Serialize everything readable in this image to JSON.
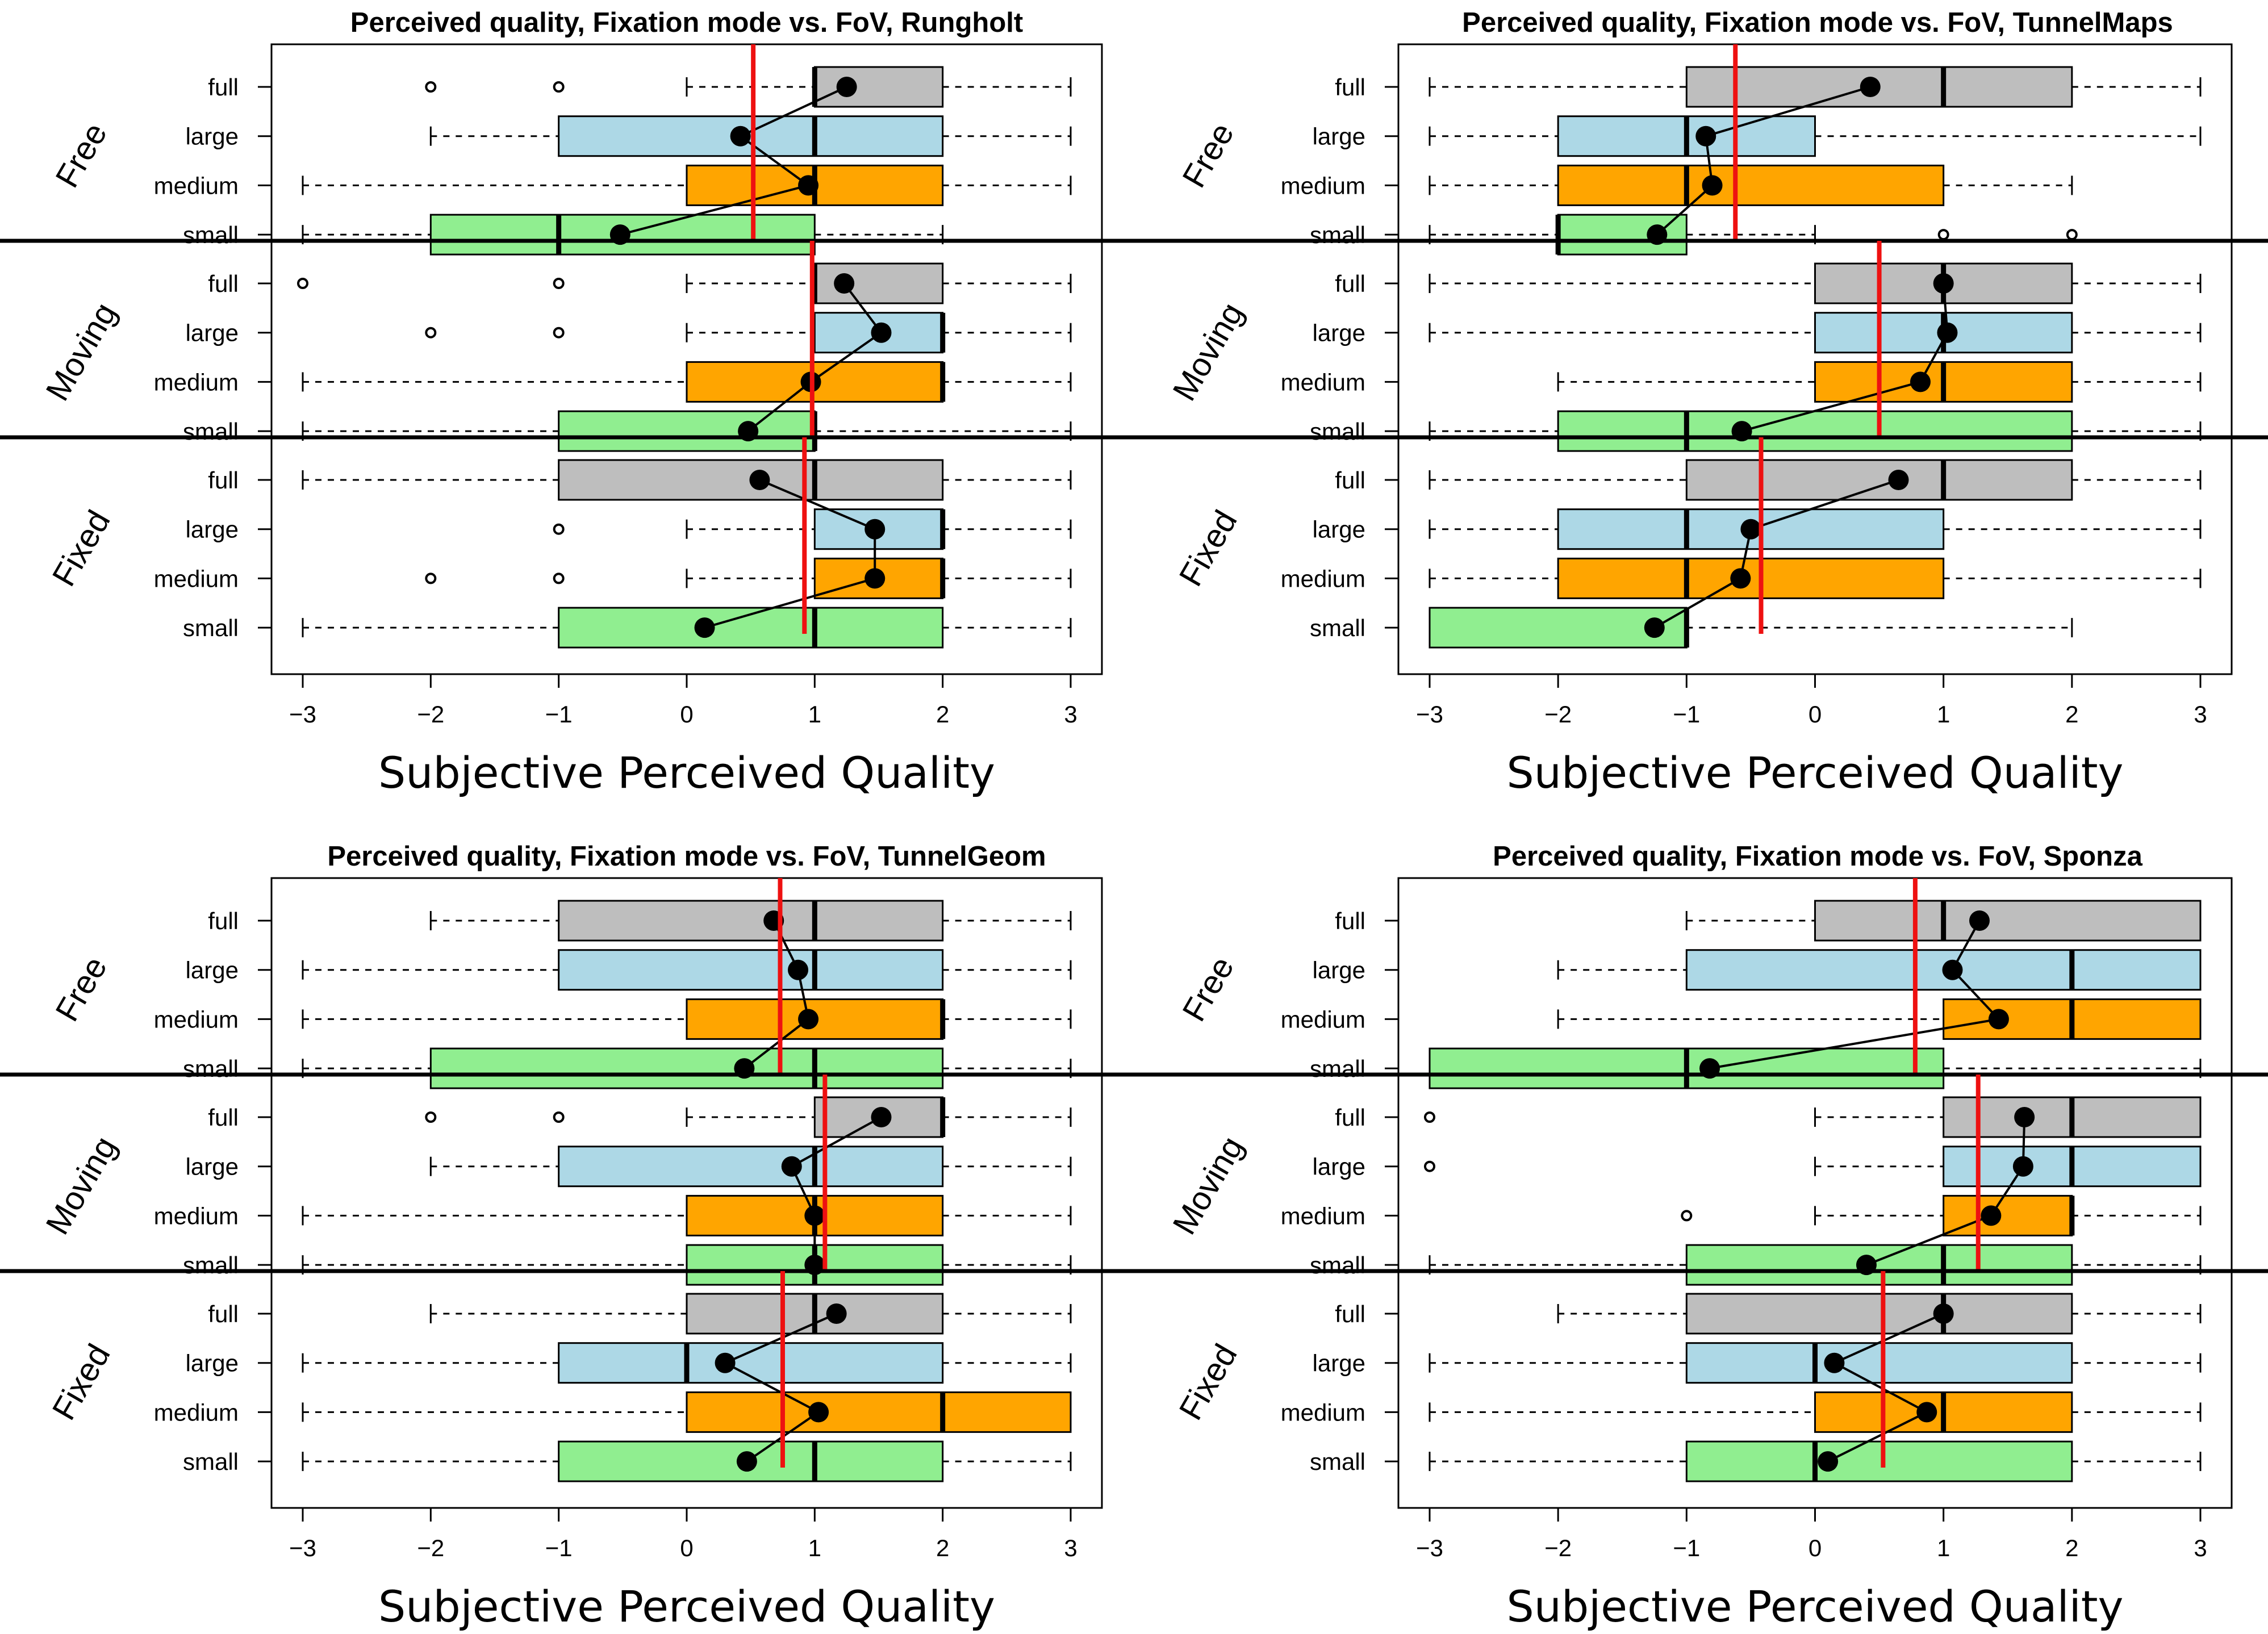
{
  "chart_data": [
    {
      "type": "boxplot",
      "title": "Perceived quality, Fixation mode vs. FoV,  Rungholt",
      "xlabel": "Subjective Perceived Quality",
      "xlim": [
        -3,
        3
      ],
      "xticks": [
        -3,
        -2,
        -1,
        0,
        1,
        2,
        3
      ],
      "groups": [
        {
          "name": "Free",
          "grand_mean": 0.52,
          "rows": [
            {
              "label": "full",
              "color": "#bebebe",
              "whisker_low": 0,
              "q1": 1,
              "median": 1,
              "q3": 2,
              "whisker_high": 3,
              "mean": 1.25,
              "outliers": [
                -2,
                -1
              ]
            },
            {
              "label": "large",
              "color": "#add8e6",
              "whisker_low": -2,
              "q1": -1,
              "median": 1,
              "q3": 2,
              "whisker_high": 3,
              "mean": 0.42,
              "outliers": []
            },
            {
              "label": "medium",
              "color": "#ffa500",
              "whisker_low": -3,
              "q1": 0,
              "median": 1,
              "q3": 2,
              "whisker_high": 3,
              "mean": 0.95,
              "outliers": []
            },
            {
              "label": "small",
              "color": "#90ee90",
              "whisker_low": -3,
              "q1": -2,
              "median": -1,
              "q3": 1,
              "whisker_high": 2,
              "mean": -0.52,
              "outliers": []
            }
          ]
        },
        {
          "name": "Moving",
          "grand_mean": 0.98,
          "rows": [
            {
              "label": "full",
              "color": "#bebebe",
              "whisker_low": 0,
              "q1": 1,
              "median": 1,
              "q3": 2,
              "whisker_high": 3,
              "mean": 1.23,
              "outliers": [
                -3,
                -1
              ]
            },
            {
              "label": "large",
              "color": "#add8e6",
              "whisker_low": 0,
              "q1": 1,
              "median": 2,
              "q3": 2,
              "whisker_high": 3,
              "mean": 1.52,
              "outliers": [
                -2,
                -1
              ]
            },
            {
              "label": "medium",
              "color": "#ffa500",
              "whisker_low": -3,
              "q1": 0,
              "median": 2,
              "q3": 2,
              "whisker_high": 3,
              "mean": 0.97,
              "outliers": []
            },
            {
              "label": "small",
              "color": "#90ee90",
              "whisker_low": -3,
              "q1": -1,
              "median": 1,
              "q3": 1,
              "whisker_high": 3,
              "mean": 0.48,
              "outliers": []
            }
          ]
        },
        {
          "name": "Fixed",
          "grand_mean": 0.92,
          "rows": [
            {
              "label": "full",
              "color": "#bebebe",
              "whisker_low": -3,
              "q1": -1,
              "median": 1,
              "q3": 2,
              "whisker_high": 3,
              "mean": 0.57,
              "outliers": []
            },
            {
              "label": "large",
              "color": "#add8e6",
              "whisker_low": 0,
              "q1": 1,
              "median": 2,
              "q3": 2,
              "whisker_high": 3,
              "mean": 1.47,
              "outliers": [
                -1
              ]
            },
            {
              "label": "medium",
              "color": "#ffa500",
              "whisker_low": 0,
              "q1": 1,
              "median": 2,
              "q3": 2,
              "whisker_high": 3,
              "mean": 1.47,
              "outliers": [
                -2,
                -1
              ]
            },
            {
              "label": "small",
              "color": "#90ee90",
              "whisker_low": -3,
              "q1": -1,
              "median": 1,
              "q3": 2,
              "whisker_high": 3,
              "mean": 0.14,
              "outliers": []
            }
          ]
        }
      ]
    },
    {
      "type": "boxplot",
      "title": "Perceived quality, Fixation mode vs. FoV,  TunnelMaps",
      "xlabel": "Subjective Perceived Quality",
      "xlim": [
        -3,
        3
      ],
      "xticks": [
        -3,
        -2,
        -1,
        0,
        1,
        2,
        3
      ],
      "groups": [
        {
          "name": "Free",
          "grand_mean": -0.62,
          "rows": [
            {
              "label": "full",
              "color": "#bebebe",
              "whisker_low": -3,
              "q1": -1,
              "median": 1,
              "q3": 2,
              "whisker_high": 3,
              "mean": 0.43,
              "outliers": []
            },
            {
              "label": "large",
              "color": "#add8e6",
              "whisker_low": -3,
              "q1": -2,
              "median": -1,
              "q3": 0,
              "whisker_high": 3,
              "mean": -0.85,
              "outliers": []
            },
            {
              "label": "medium",
              "color": "#ffa500",
              "whisker_low": -3,
              "q1": -2,
              "median": -1,
              "q3": 1,
              "whisker_high": 2,
              "mean": -0.8,
              "outliers": []
            },
            {
              "label": "small",
              "color": "#90ee90",
              "whisker_low": -3,
              "q1": -2,
              "median": -2,
              "q3": -1,
              "whisker_high": 0,
              "mean": -1.23,
              "outliers": [
                1,
                2
              ]
            }
          ]
        },
        {
          "name": "Moving",
          "grand_mean": 0.5,
          "rows": [
            {
              "label": "full",
              "color": "#bebebe",
              "whisker_low": -3,
              "q1": 0,
              "median": 1,
              "q3": 2,
              "whisker_high": 3,
              "mean": 1.0,
              "outliers": []
            },
            {
              "label": "large",
              "color": "#add8e6",
              "whisker_low": -3,
              "q1": 0,
              "median": 1,
              "q3": 2,
              "whisker_high": 3,
              "mean": 1.03,
              "outliers": []
            },
            {
              "label": "medium",
              "color": "#ffa500",
              "whisker_low": -2,
              "q1": 0,
              "median": 1,
              "q3": 2,
              "whisker_high": 3,
              "mean": 0.82,
              "outliers": []
            },
            {
              "label": "small",
              "color": "#90ee90",
              "whisker_low": -3,
              "q1": -2,
              "median": -1,
              "q3": 2,
              "whisker_high": 3,
              "mean": -0.57,
              "outliers": []
            }
          ]
        },
        {
          "name": "Fixed",
          "grand_mean": -0.42,
          "rows": [
            {
              "label": "full",
              "color": "#bebebe",
              "whisker_low": -3,
              "q1": -1,
              "median": 1,
              "q3": 2,
              "whisker_high": 3,
              "mean": 0.65,
              "outliers": []
            },
            {
              "label": "large",
              "color": "#add8e6",
              "whisker_low": -3,
              "q1": -2,
              "median": -1,
              "q3": 1,
              "whisker_high": 3,
              "mean": -0.5,
              "outliers": []
            },
            {
              "label": "medium",
              "color": "#ffa500",
              "whisker_low": -3,
              "q1": -2,
              "median": -1,
              "q3": 1,
              "whisker_high": 3,
              "mean": -0.58,
              "outliers": []
            },
            {
              "label": "small",
              "color": "#90ee90",
              "whisker_low": -3,
              "q1": -3,
              "median": -1,
              "q3": -1,
              "whisker_high": 2,
              "mean": -1.25,
              "outliers": []
            }
          ]
        }
      ]
    },
    {
      "type": "boxplot",
      "title": "Perceived quality, Fixation mode vs. FoV,  TunnelGeom",
      "xlabel": "Subjective Perceived Quality",
      "xlim": [
        -3,
        3
      ],
      "xticks": [
        -3,
        -2,
        -1,
        0,
        1,
        2,
        3
      ],
      "groups": [
        {
          "name": "Free",
          "grand_mean": 0.73,
          "rows": [
            {
              "label": "full",
              "color": "#bebebe",
              "whisker_low": -2,
              "q1": -1,
              "median": 1,
              "q3": 2,
              "whisker_high": 3,
              "mean": 0.68,
              "outliers": []
            },
            {
              "label": "large",
              "color": "#add8e6",
              "whisker_low": -3,
              "q1": -1,
              "median": 1,
              "q3": 2,
              "whisker_high": 3,
              "mean": 0.87,
              "outliers": []
            },
            {
              "label": "medium",
              "color": "#ffa500",
              "whisker_low": -3,
              "q1": 0,
              "median": 2,
              "q3": 2,
              "whisker_high": 3,
              "mean": 0.95,
              "outliers": []
            },
            {
              "label": "small",
              "color": "#90ee90",
              "whisker_low": -3,
              "q1": -2,
              "median": 1,
              "q3": 2,
              "whisker_high": 3,
              "mean": 0.45,
              "outliers": []
            }
          ]
        },
        {
          "name": "Moving",
          "grand_mean": 1.08,
          "rows": [
            {
              "label": "full",
              "color": "#bebebe",
              "whisker_low": 0,
              "q1": 1,
              "median": 2,
              "q3": 2,
              "whisker_high": 3,
              "mean": 1.52,
              "outliers": [
                -2,
                -1
              ]
            },
            {
              "label": "large",
              "color": "#add8e6",
              "whisker_low": -2,
              "q1": -1,
              "median": 1,
              "q3": 2,
              "whisker_high": 3,
              "mean": 0.82,
              "outliers": []
            },
            {
              "label": "medium",
              "color": "#ffa500",
              "whisker_low": -3,
              "q1": 0,
              "median": 1,
              "q3": 2,
              "whisker_high": 3,
              "mean": 1.0,
              "outliers": []
            },
            {
              "label": "small",
              "color": "#90ee90",
              "whisker_low": -3,
              "q1": 0,
              "median": 1,
              "q3": 2,
              "whisker_high": 3,
              "mean": 1.0,
              "outliers": []
            }
          ]
        },
        {
          "name": "Fixed",
          "grand_mean": 0.75,
          "rows": [
            {
              "label": "full",
              "color": "#bebebe",
              "whisker_low": -2,
              "q1": 0,
              "median": 1,
              "q3": 2,
              "whisker_high": 3,
              "mean": 1.17,
              "outliers": []
            },
            {
              "label": "large",
              "color": "#add8e6",
              "whisker_low": -3,
              "q1": -1,
              "median": 0,
              "q3": 2,
              "whisker_high": 3,
              "mean": 0.3,
              "outliers": []
            },
            {
              "label": "medium",
              "color": "#ffa500",
              "whisker_low": -3,
              "q1": 0,
              "median": 2,
              "q3": 3,
              "whisker_high": 3,
              "mean": 1.03,
              "outliers": []
            },
            {
              "label": "small",
              "color": "#90ee90",
              "whisker_low": -3,
              "q1": -1,
              "median": 1,
              "q3": 2,
              "whisker_high": 3,
              "mean": 0.47,
              "outliers": []
            }
          ]
        }
      ]
    },
    {
      "type": "boxplot",
      "title": "Perceived quality, Fixation mode vs. FoV,  Sponza",
      "xlabel": "Subjective Perceived Quality",
      "xlim": [
        -3,
        3
      ],
      "xticks": [
        -3,
        -2,
        -1,
        0,
        1,
        2,
        3
      ],
      "groups": [
        {
          "name": "Free",
          "grand_mean": 0.78,
          "rows": [
            {
              "label": "full",
              "color": "#bebebe",
              "whisker_low": -1,
              "q1": 0,
              "median": 1,
              "q3": 3,
              "whisker_high": 3,
              "mean": 1.28,
              "outliers": []
            },
            {
              "label": "large",
              "color": "#add8e6",
              "whisker_low": -2,
              "q1": -1,
              "median": 2,
              "q3": 3,
              "whisker_high": 3,
              "mean": 1.07,
              "outliers": []
            },
            {
              "label": "medium",
              "color": "#ffa500",
              "whisker_low": -2,
              "q1": 1,
              "median": 2,
              "q3": 3,
              "whisker_high": 3,
              "mean": 1.43,
              "outliers": []
            },
            {
              "label": "small",
              "color": "#90ee90",
              "whisker_low": -3,
              "q1": -3,
              "median": -1,
              "q3": 1,
              "whisker_high": 3,
              "mean": -0.82,
              "outliers": []
            }
          ]
        },
        {
          "name": "Moving",
          "grand_mean": 1.27,
          "rows": [
            {
              "label": "full",
              "color": "#bebebe",
              "whisker_low": 0,
              "q1": 1,
              "median": 2,
              "q3": 3,
              "whisker_high": 3,
              "mean": 1.63,
              "outliers": [
                -3
              ]
            },
            {
              "label": "large",
              "color": "#add8e6",
              "whisker_low": 0,
              "q1": 1,
              "median": 2,
              "q3": 3,
              "whisker_high": 3,
              "mean": 1.62,
              "outliers": [
                -3
              ]
            },
            {
              "label": "medium",
              "color": "#ffa500",
              "whisker_low": 0,
              "q1": 1,
              "median": 2,
              "q3": 2,
              "whisker_high": 3,
              "mean": 1.37,
              "outliers": [
                -1
              ]
            },
            {
              "label": "small",
              "color": "#90ee90",
              "whisker_low": -3,
              "q1": -1,
              "median": 1,
              "q3": 2,
              "whisker_high": 3,
              "mean": 0.4,
              "outliers": []
            }
          ]
        },
        {
          "name": "Fixed",
          "grand_mean": 0.53,
          "rows": [
            {
              "label": "full",
              "color": "#bebebe",
              "whisker_low": -2,
              "q1": -1,
              "median": 1,
              "q3": 2,
              "whisker_high": 3,
              "mean": 1.0,
              "outliers": []
            },
            {
              "label": "large",
              "color": "#add8e6",
              "whisker_low": -3,
              "q1": -1,
              "median": 0,
              "q3": 2,
              "whisker_high": 3,
              "mean": 0.15,
              "outliers": []
            },
            {
              "label": "medium",
              "color": "#ffa500",
              "whisker_low": -3,
              "q1": 0,
              "median": 1,
              "q3": 2,
              "whisker_high": 3,
              "mean": 0.87,
              "outliers": []
            },
            {
              "label": "small",
              "color": "#90ee90",
              "whisker_low": -3,
              "q1": -1,
              "median": 0,
              "q3": 2,
              "whisker_high": 3,
              "mean": 0.1,
              "outliers": []
            }
          ]
        }
      ]
    }
  ],
  "colors": {
    "mean_line": "#ee1111",
    "mean_point": "#000000",
    "frame": "#000000"
  }
}
